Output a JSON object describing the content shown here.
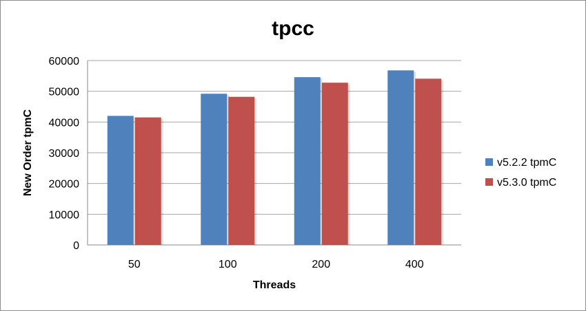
{
  "chart_data": {
    "type": "bar",
    "title": "tpcc",
    "xlabel": "Threads",
    "ylabel": "New Order tpmC",
    "categories": [
      "50",
      "100",
      "200",
      "400"
    ],
    "series": [
      {
        "name": "v5.2.2 tpmC",
        "color": "#4f81bd",
        "values": [
          42000,
          49200,
          54600,
          56800
        ]
      },
      {
        "name": "v5.3.0 tpmC",
        "color": "#c0504d",
        "values": [
          41500,
          48200,
          52800,
          54100
        ]
      }
    ],
    "ylim": [
      0,
      60000
    ],
    "yticks": [
      "0",
      "10000",
      "20000",
      "30000",
      "40000",
      "50000",
      "60000"
    ],
    "grid": true,
    "legend_position": "right"
  }
}
